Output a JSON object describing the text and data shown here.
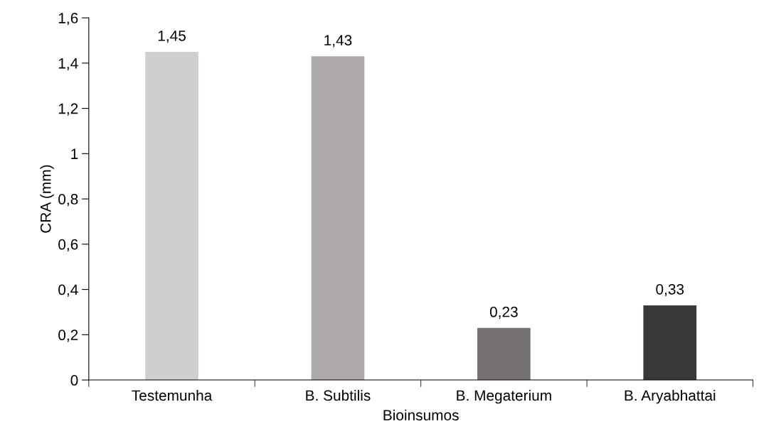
{
  "chart_data": {
    "type": "bar",
    "xlabel": "Bioinsumos",
    "ylabel": "CRA (mm)",
    "categories": [
      "Testemunha",
      "B. Subtilis",
      "B. Megaterium",
      "B. Aryabhattai"
    ],
    "values": [
      1.45,
      1.43,
      0.23,
      0.33
    ],
    "colors": [
      "#d0cecf",
      "#aeaaaa",
      "#767171",
      "#3b3838"
    ],
    "value_labels": [
      "1,45",
      "1,43",
      "0,23",
      "0,33"
    ],
    "ylim": [
      0,
      1.6
    ],
    "yticks": [
      0,
      {
        "value": 0.2,
        "label": "0,2"
      },
      {
        "value": 0.4,
        "label": "0,4"
      },
      {
        "value": 0.6,
        "label": "0,6"
      },
      {
        "value": 0.8,
        "label": "0,8"
      },
      1,
      {
        "value": 1.2,
        "label": "1,2"
      },
      {
        "value": 1.4,
        "label": "1,4"
      },
      {
        "value": 1.6,
        "label": "1,6"
      }
    ],
    "grid": false,
    "legend": false
  }
}
